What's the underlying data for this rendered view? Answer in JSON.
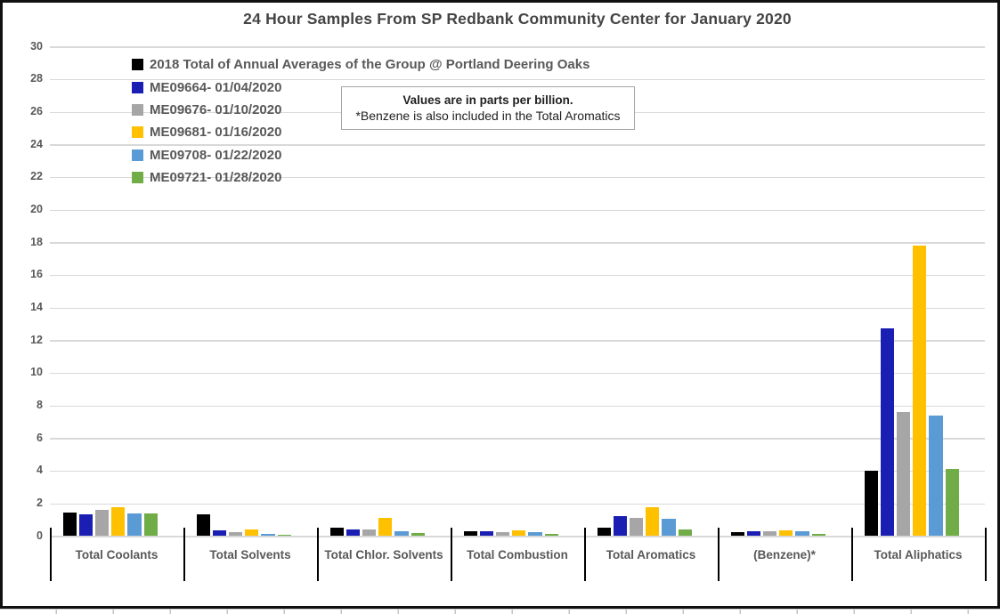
{
  "chart_data": {
    "type": "bar",
    "title": "24 Hour Samples From SP Redbank Community Center for January 2020",
    "note": {
      "line1": "Values are in parts per billion.",
      "line2": "*Benzene is also included in the Total Aromatics"
    },
    "units": "parts per billion",
    "grid": true,
    "legend_position": "top-left",
    "ylim": [
      0,
      30
    ],
    "ytick_step": 2,
    "categories": [
      "Total Coolants",
      "Total Solvents",
      "Total Chlor. Solvents",
      "Total Combustion",
      "Total Aromatics",
      "(Benzene)*",
      "Total Aliphatics"
    ],
    "series": [
      {
        "name": "2018 Total of Annual Averages of the Group @ Portland Deering Oaks",
        "color": "#000000",
        "values": [
          1.45,
          1.3,
          0.5,
          0.3,
          0.5,
          0.25,
          4.0
        ]
      },
      {
        "name": "ME09664- 01/04/2020",
        "color": "#1A1EB2",
        "values": [
          1.35,
          0.35,
          0.4,
          0.3,
          1.2,
          0.3,
          12.7
        ]
      },
      {
        "name": "ME09676- 01/10/2020",
        "color": "#A6A6A6",
        "values": [
          1.6,
          0.25,
          0.4,
          0.25,
          1.1,
          0.3,
          7.6
        ]
      },
      {
        "name": "ME09681- 01/16/2020",
        "color": "#FFC000",
        "values": [
          1.75,
          0.4,
          1.1,
          0.35,
          1.75,
          0.35,
          17.8
        ]
      },
      {
        "name": "ME09708- 01/22/2020",
        "color": "#5B9BD5",
        "values": [
          1.4,
          0.15,
          0.3,
          0.25,
          1.05,
          0.3,
          7.4
        ]
      },
      {
        "name": "ME09721- 01/28/2020",
        "color": "#70AD47",
        "values": [
          1.4,
          0.08,
          0.2,
          0.1,
          0.4,
          0.15,
          4.1
        ]
      }
    ]
  }
}
